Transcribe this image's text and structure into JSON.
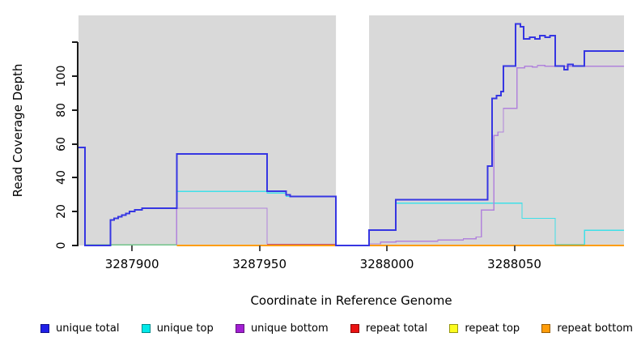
{
  "figure": {
    "background": "#ffffff",
    "panel_bg": "#d9d9d9",
    "xlabel": "Coordinate in Reference Genome",
    "ylabel": "Read Coverage Depth"
  },
  "legend": {
    "position": "bottom",
    "items": [
      {
        "label": "unique total",
        "color": "#1f1fe8"
      },
      {
        "label": "unique top",
        "color": "#00e9e9"
      },
      {
        "label": "unique bottom",
        "color": "#a21fd3"
      },
      {
        "label": "repeat total",
        "color": "#ea1212"
      },
      {
        "label": "repeat top",
        "color": "#fcfc1f"
      },
      {
        "label": "repeat bottom",
        "color": "#ff9d0a"
      }
    ]
  },
  "chart_data": {
    "type": "line",
    "subtype": "step-coverage",
    "title": "",
    "xlabel": "Coordinate in Reference Genome",
    "ylabel": "Read Coverage Depth",
    "xlim": [
      3287879,
      3288093
    ],
    "ylim": [
      0,
      136
    ],
    "grid": false,
    "panel_bg": "#d9d9d9",
    "gap_region": {
      "x_start": 3287980,
      "x_end": 3287993,
      "color": "#ffffff"
    },
    "x_ticks": [
      {
        "value": 3287900,
        "label": "3287900"
      },
      {
        "value": 3287950,
        "label": "3287950"
      },
      {
        "value": 3288000,
        "label": "3288000"
      },
      {
        "value": 3288050,
        "label": "3288050"
      }
    ],
    "y_ticks": [
      {
        "value": 0,
        "label": "0"
      },
      {
        "value": 20,
        "label": "20"
      },
      {
        "value": 40,
        "label": "40"
      },
      {
        "value": 60,
        "label": "60"
      },
      {
        "value": 80,
        "label": "80"
      },
      {
        "value": 100,
        "label": "100"
      },
      {
        "value": 120,
        "label": ""
      }
    ],
    "series": [
      {
        "name": "repeat total",
        "color": "#d42a2a",
        "width": 1.2,
        "paths": [
          {
            "points": [
              [
                3287917.5,
                0
              ],
              [
                3287980,
                0
              ]
            ]
          }
        ]
      },
      {
        "name": "repeat top",
        "color": "#fcfc1f",
        "width": 1.2,
        "paths": [
          {
            "points": [
              [
                3287993,
                0
              ],
              [
                3288093,
                0
              ]
            ]
          }
        ]
      },
      {
        "name": "repeat bottom",
        "color": "#ff9d0a",
        "width": 1.8,
        "paths": [
          {
            "points": [
              [
                3287917.5,
                0
              ],
              [
                3287980,
                0
              ]
            ]
          },
          {
            "points": [
              [
                3287993,
                0
              ],
              [
                3288093,
                0
              ]
            ]
          }
        ]
      },
      {
        "name": "unique top",
        "color": "#3fe0e8",
        "width": 1.3,
        "paths": [
          {
            "color": "#70c489",
            "points": [
              [
                3287881.5,
                0.4
              ],
              [
                3287917.5,
                0.4
              ]
            ]
          },
          {
            "points": [
              [
                3287917.5,
                0.4
              ],
              [
                3287917.5,
                32
              ],
              [
                3287953,
                32
              ],
              [
                3287953,
                31
              ],
              [
                3287960.5,
                31
              ],
              [
                3287960.5,
                29
              ],
              [
                3287980,
                29
              ]
            ]
          },
          {
            "points": [
              [
                3287993,
                9
              ],
              [
                3288003.5,
                9
              ],
              [
                3288003.5,
                25
              ],
              [
                3288053,
                25
              ],
              [
                3288053,
                16
              ],
              [
                3288066,
                16
              ],
              [
                3288066,
                0.5
              ]
            ]
          },
          {
            "color": "#52bd83",
            "points": [
              [
                3288066,
                0.5
              ],
              [
                3288077.5,
                0.5
              ]
            ]
          },
          {
            "points": [
              [
                3288077.5,
                0.5
              ],
              [
                3288077.5,
                9
              ],
              [
                3288093,
                9
              ]
            ]
          }
        ]
      },
      {
        "name": "unique bottom",
        "color": "#b183dc",
        "width": 1.3,
        "paths": [
          {
            "points": [
              [
                3287917.5,
                0.5
              ],
              [
                3287917.5,
                22
              ],
              [
                3287953,
                22
              ],
              [
                3287953,
                0.7
              ]
            ]
          },
          {
            "color": "#c0517a",
            "points": [
              [
                3287953,
                0.7
              ],
              [
                3287980,
                0.7
              ]
            ]
          },
          {
            "points": [
              [
                3287993,
                1
              ],
              [
                3287997.5,
                1
              ],
              [
                3287997.5,
                2
              ],
              [
                3288003.5,
                2
              ],
              [
                3288003.5,
                2.5
              ],
              [
                3288020,
                2.5
              ],
              [
                3288020,
                3.2
              ],
              [
                3288030,
                3.2
              ],
              [
                3288030,
                4
              ],
              [
                3288035,
                4
              ],
              [
                3288035,
                5
              ],
              [
                3288037,
                5
              ],
              [
                3288037,
                21
              ],
              [
                3288042,
                21
              ],
              [
                3288042,
                65
              ],
              [
                3288043.5,
                65
              ],
              [
                3288043.5,
                67
              ],
              [
                3288045.7,
                67
              ],
              [
                3288045.7,
                81
              ],
              [
                3288051,
                81
              ],
              [
                3288051,
                105
              ],
              [
                3288054,
                105
              ],
              [
                3288054,
                106
              ],
              [
                3288057,
                106
              ],
              [
                3288057,
                105.5
              ],
              [
                3288059,
                105.5
              ],
              [
                3288059,
                106.5
              ],
              [
                3288062,
                106.5
              ],
              [
                3288062,
                106
              ],
              [
                3288093,
                106
              ]
            ]
          }
        ]
      },
      {
        "name": "unique total",
        "color": "#3636e2",
        "width": 2,
        "paths": [
          {
            "points": [
              [
                3287879,
                58
              ],
              [
                3287881.5,
                58
              ],
              [
                3287881.5,
                0
              ],
              [
                3287891.5,
                0
              ],
              [
                3287891.5,
                15
              ],
              [
                3287893,
                15
              ],
              [
                3287893,
                16
              ],
              [
                3287894.5,
                16
              ],
              [
                3287894.5,
                17
              ],
              [
                3287896,
                17
              ],
              [
                3287896,
                18
              ],
              [
                3287897.5,
                18
              ],
              [
                3287897.5,
                19
              ],
              [
                3287899,
                19
              ],
              [
                3287899,
                20
              ],
              [
                3287901,
                20
              ],
              [
                3287901,
                21
              ],
              [
                3287904,
                21
              ],
              [
                3287904,
                22
              ],
              [
                3287917.5,
                22
              ],
              [
                3287917.5,
                54
              ],
              [
                3287953,
                54
              ],
              [
                3287953,
                32
              ],
              [
                3287960.5,
                32
              ],
              [
                3287960.5,
                30
              ],
              [
                3287962,
                30
              ],
              [
                3287962,
                29
              ],
              [
                3287980,
                29
              ],
              [
                3287980,
                0
              ],
              [
                3287993,
                0
              ],
              [
                3287993,
                9
              ],
              [
                3288003.5,
                9
              ],
              [
                3288003.5,
                27
              ],
              [
                3288039.5,
                27
              ],
              [
                3288039.5,
                47
              ],
              [
                3288041.3,
                47
              ],
              [
                3288041.3,
                87
              ],
              [
                3288043,
                87
              ],
              [
                3288043,
                88.5
              ],
              [
                3288044.7,
                88.5
              ],
              [
                3288044.7,
                91
              ],
              [
                3288045.7,
                91
              ],
              [
                3288045.7,
                106
              ],
              [
                3288050.5,
                106
              ],
              [
                3288050.5,
                131
              ],
              [
                3288052.3,
                131
              ],
              [
                3288052.3,
                129.3
              ],
              [
                3288053.7,
                129.3
              ],
              [
                3288053.7,
                122
              ],
              [
                3288056,
                122
              ],
              [
                3288056,
                123
              ],
              [
                3288058,
                123
              ],
              [
                3288058,
                122
              ],
              [
                3288060,
                122
              ],
              [
                3288060,
                124
              ],
              [
                3288062,
                124
              ],
              [
                3288062,
                123
              ],
              [
                3288064,
                123
              ],
              [
                3288064,
                124
              ],
              [
                3288066,
                124
              ],
              [
                3288066,
                106
              ],
              [
                3288069.5,
                106
              ],
              [
                3288069.5,
                104
              ],
              [
                3288071,
                104
              ],
              [
                3288071,
                107
              ],
              [
                3288073,
                107
              ],
              [
                3288073,
                106
              ],
              [
                3288077.5,
                106
              ],
              [
                3288077.5,
                115
              ],
              [
                3288093,
                115
              ]
            ]
          }
        ]
      }
    ]
  }
}
